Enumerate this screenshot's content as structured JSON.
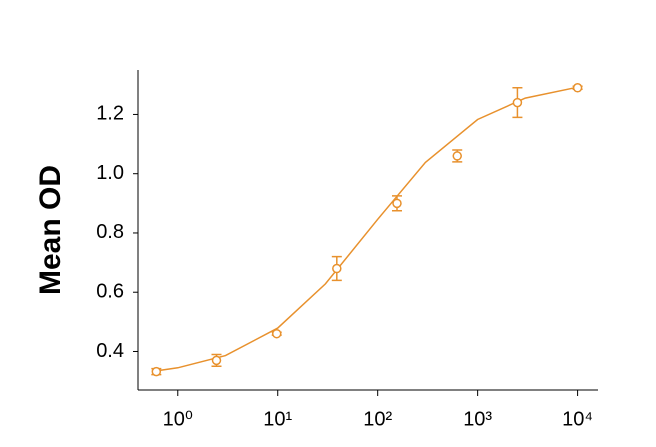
{
  "chart_data": {
    "type": "scatter",
    "y_label": "Mean OD",
    "log_x": true,
    "xlim": [
      0.4,
      16000
    ],
    "ylim": [
      0.27,
      1.35
    ],
    "xticks": [
      {
        "value": 1,
        "label": "10⁰"
      },
      {
        "value": 10,
        "label": "10¹"
      },
      {
        "value": 100,
        "label": "10²"
      },
      {
        "value": 1000,
        "label": "10³"
      },
      {
        "value": 10000,
        "label": "10⁴"
      }
    ],
    "yticks": [
      0.4,
      0.6,
      0.8,
      1.0,
      1.2
    ],
    "series": [
      {
        "color": "#e8912d",
        "x": [
          0.61,
          2.44,
          9.77,
          39,
          156,
          625,
          2500,
          10000
        ],
        "values": [
          0.332,
          0.37,
          0.46,
          0.68,
          0.9,
          1.06,
          1.24,
          1.29
        ],
        "errors": [
          0.01,
          0.02,
          0.005,
          0.04,
          0.025,
          0.02,
          0.05,
          0.005
        ]
      }
    ],
    "curve": {
      "color": "#e8912d",
      "x": [
        0.6,
        1,
        3,
        10,
        30,
        100,
        300,
        1000,
        3000,
        10000
      ],
      "values": [
        0.334,
        0.345,
        0.386,
        0.479,
        0.628,
        0.846,
        1.038,
        1.183,
        1.255,
        1.292
      ]
    }
  }
}
